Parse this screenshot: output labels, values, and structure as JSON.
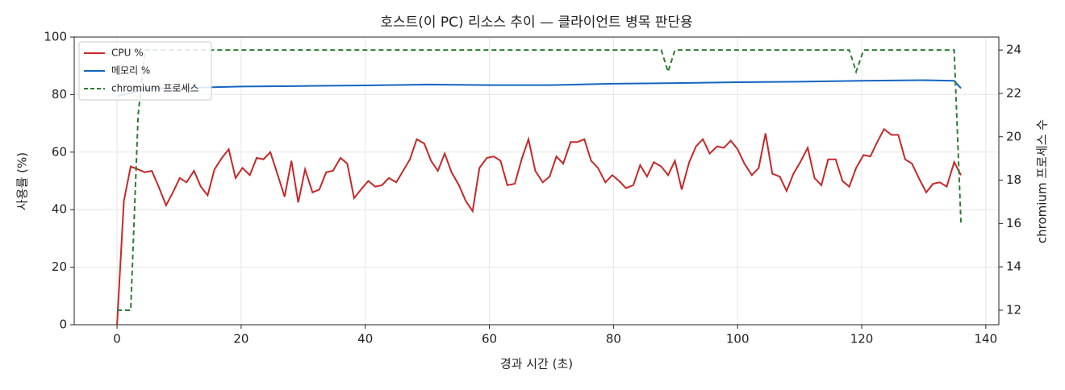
{
  "chart_data": {
    "type": "line",
    "title": "호스트(이 PC) 리소스 추이 — 클라이언트 병목 판단용",
    "xlabel": "경과 시간 (초)",
    "ylabel": "사용률 (%)",
    "y2label": "chromium 프로세스 수",
    "xlim": [
      -6.9,
      142.1
    ],
    "xticks": [
      0,
      20,
      40,
      60,
      80,
      100,
      120,
      140
    ],
    "ylim": [
      0,
      100
    ],
    "yticks": [
      0,
      20,
      40,
      60,
      80,
      100
    ],
    "y2lim": [
      11.33,
      24.6
    ],
    "y2ticks": [
      12,
      14,
      16,
      18,
      20,
      22,
      24
    ],
    "grid": true,
    "legend": "upper left",
    "series": [
      {
        "name": "CPU %",
        "color": "#c62828",
        "x": [
          0,
          1.1,
          2.2,
          3.4,
          4.5,
          5.6,
          6.7,
          7.9,
          9,
          10.1,
          11.2,
          12.4,
          13.5,
          14.6,
          15.7,
          16.9,
          18,
          19.1,
          20.2,
          21.4,
          22.5,
          23.6,
          24.7,
          25.9,
          27,
          28.1,
          29.2,
          30.3,
          31.5,
          32.6,
          33.7,
          34.8,
          36,
          37.1,
          38.2,
          39.3,
          40.5,
          41.6,
          42.7,
          43.8,
          45,
          46.1,
          47.2,
          48.3,
          49.5,
          50.6,
          51.7,
          52.8,
          53.9,
          55.1,
          56.2,
          57.3,
          58.4,
          59.6,
          60.7,
          61.8,
          62.9,
          64.1,
          65.2,
          66.3,
          67.4,
          68.6,
          69.7,
          70.8,
          71.9,
          73.1,
          74.2,
          75.3,
          76.4,
          77.5,
          78.7,
          79.8,
          80.9,
          82,
          83.2,
          84.3,
          85.4,
          86.5,
          87.7,
          88.8,
          89.9,
          91,
          92.2,
          93.3,
          94.4,
          95.5,
          96.7,
          97.8,
          98.9,
          100,
          101.1,
          102.3,
          103.4,
          104.5,
          105.6,
          106.8,
          107.9,
          109,
          110.1,
          111.3,
          112.4,
          113.5,
          114.6,
          115.8,
          116.9,
          118,
          119.1,
          120.3,
          121.4,
          122.5,
          123.6,
          124.8,
          125.9,
          127,
          128.1,
          129.2,
          130.4,
          131.5,
          132.6,
          133.7,
          134.9,
          136
        ],
        "values": [
          0,
          43,
          55,
          54,
          53,
          53.5,
          48,
          41.5,
          46,
          51,
          49.5,
          53.5,
          48,
          45,
          54,
          58,
          61,
          51,
          54.5,
          52,
          58,
          57.5,
          60,
          52,
          44.5,
          57,
          42.5,
          54,
          46,
          47,
          53,
          53.5,
          58,
          56,
          44,
          47,
          50,
          48,
          48.5,
          51,
          49.5,
          53.5,
          57.5,
          64.5,
          63,
          57,
          53.5,
          59.5,
          53,
          48.5,
          43,
          39.5,
          54.5,
          58,
          58.5,
          57,
          48.5,
          49,
          57.5,
          64.5,
          53.5,
          49.5,
          51.5,
          58.5,
          56,
          63.5,
          63.5,
          64.5,
          57,
          54.5,
          49.5,
          52,
          50,
          47.5,
          48.5,
          55.5,
          51.5,
          56.5,
          55,
          52,
          57,
          47,
          56.5,
          62,
          64.5,
          59.5,
          62,
          61.5,
          64,
          61,
          56,
          52,
          54.5,
          66.5,
          52.5,
          51.5,
          46.5,
          52.5,
          56.5,
          61.5,
          51,
          48.5,
          57.5,
          57.5,
          50,
          48,
          54.5,
          59,
          58.5,
          63.5,
          68,
          66,
          66,
          57.5,
          56,
          51,
          46,
          49,
          49.5,
          48,
          56.5,
          52
        ]
      },
      {
        "name": "메모리 %",
        "color": "#1565c0",
        "x": [
          0,
          5,
          10,
          20,
          30,
          40,
          50,
          60,
          70,
          80,
          90,
          100,
          110,
          120,
          130,
          134.9,
          136
        ],
        "values": [
          79.5,
          82,
          82.3,
          82.8,
          83,
          83.2,
          83.5,
          83.3,
          83.3,
          83.8,
          84,
          84.3,
          84.5,
          84.8,
          85,
          84.8,
          82.2
        ]
      },
      {
        "name": "chromium 프로세스",
        "color": "#2e7d32",
        "dashed": true,
        "axis": "y2",
        "x": [
          0,
          2.2,
          3.4,
          4.5,
          87.7,
          88.8,
          89.9,
          118,
          119.1,
          120.3,
          134.9,
          136
        ],
        "values": [
          12,
          12,
          21,
          24,
          24,
          23,
          24,
          24,
          23,
          24,
          24,
          16
        ]
      }
    ]
  }
}
